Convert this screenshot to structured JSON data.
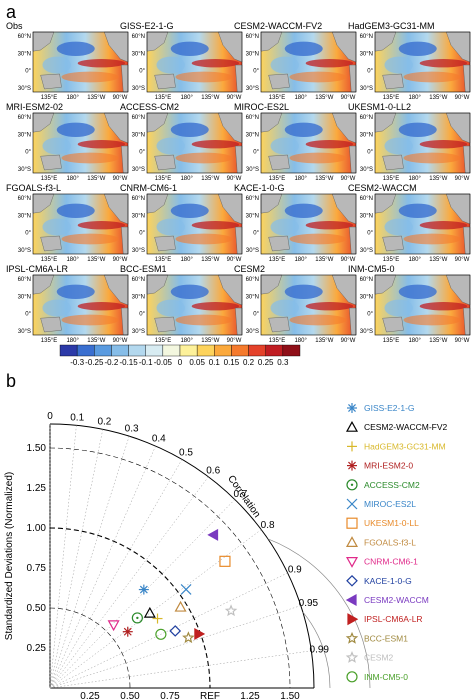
{
  "figure": {
    "panel_a_label": "a",
    "panel_b_label": "b"
  },
  "maps": [
    {
      "title": "Obs"
    },
    {
      "title": "GISS-E2-1-G"
    },
    {
      "title": "CESM2-WACCM-FV2"
    },
    {
      "title": "HadGEM3-GC31-MM"
    },
    {
      "title": "MRI-ESM2-02"
    },
    {
      "title": "ACCESS-CM2"
    },
    {
      "title": "MIROC-ES2L"
    },
    {
      "title": "UKESM1-0-LL2"
    },
    {
      "title": "FGOALS-f3-L"
    },
    {
      "title": "CNRM-CM6-1"
    },
    {
      "title": "KACE-1-0-G"
    },
    {
      "title": "CESM2-WACCM"
    },
    {
      "title": "IPSL-CM6A-LR"
    },
    {
      "title": "BCC-ESM1"
    },
    {
      "title": "CESM2"
    },
    {
      "title": "INM-CM5-0"
    }
  ],
  "map_axes": {
    "lat_ticks": [
      "60°N",
      "30°N",
      "0°",
      "30°S"
    ],
    "lon_ticks": [
      "135°E",
      "180°",
      "135°W",
      "90°W"
    ]
  },
  "colorbar": {
    "ticks": [
      "-0.3",
      "-0.25",
      "-0.2",
      "-0.15",
      "-0.1",
      "-0.05",
      "0",
      "0.05",
      "0.1",
      "0.15",
      "0.2",
      "0.25",
      "0.3"
    ],
    "colors": [
      "#2c3aa8",
      "#3a6fd0",
      "#5a9be0",
      "#86bde8",
      "#b3d8ee",
      "#d8ecf2",
      "#f3f7df",
      "#fdf19a",
      "#fdd35c",
      "#fba93c",
      "#f57a2c",
      "#e4422a",
      "#c01d22",
      "#8f0f18"
    ]
  },
  "chart_data": {
    "type": "scatter",
    "subtype": "taylor-diagram",
    "ylabel": "Standardized Deviations (Normalized)",
    "correlation_label": "Correlation",
    "ref_label": "REF",
    "std_ticks": [
      "0.25",
      "0.50",
      "0.75",
      "1.00",
      "1.25",
      "1.50"
    ],
    "x_tick_labels": [
      "0.25",
      "0.50",
      "0.75",
      "REF",
      "1.25",
      "1.50"
    ],
    "corr_ticks": [
      "0",
      "0.1",
      "0.2",
      "0.3",
      "0.4",
      "0.5",
      "0.6",
      "0.7",
      "0.8",
      "0.9",
      "0.95",
      "0.99"
    ],
    "corr_tick_values": [
      0,
      0.1,
      0.2,
      0.3,
      0.4,
      0.5,
      0.6,
      0.7,
      0.8,
      0.9,
      0.95,
      0.99
    ],
    "std_max": 1.65,
    "models": [
      {
        "name": "GISS-E2-1-G",
        "marker": "asterisk",
        "color": "#3a86c8",
        "std": 0.85,
        "corr": 0.69
      },
      {
        "name": "CESM2-WACCM-FV2",
        "marker": "triangle-up",
        "color": "#000000",
        "std": 0.78,
        "corr": 0.8
      },
      {
        "name": "HadGEM3-GC31-MM",
        "marker": "plus",
        "color": "#d8b82a",
        "std": 0.8,
        "corr": 0.84
      },
      {
        "name": "MRI-ESM2-0",
        "marker": "asterisk",
        "color": "#b02020",
        "std": 0.6,
        "corr": 0.81
      },
      {
        "name": "ACCESS-CM2",
        "marker": "circle-dot",
        "color": "#2a8a2a",
        "std": 0.7,
        "corr": 0.78
      },
      {
        "name": "MIROC-ES2L",
        "marker": "x",
        "color": "#3a86c8",
        "std": 1.05,
        "corr": 0.81
      },
      {
        "name": "UKESM1-0-LL",
        "marker": "square",
        "color": "#e88a2a",
        "std": 1.35,
        "corr": 0.81
      },
      {
        "name": "FGOALS-f3-L",
        "marker": "triangle-up",
        "color": "#c08a40",
        "std": 0.96,
        "corr": 0.85
      },
      {
        "name": "CNRM-CM6-1",
        "marker": "triangle-down",
        "color": "#e02a8a",
        "std": 0.56,
        "corr": 0.71
      },
      {
        "name": "KACE-1-0-G",
        "marker": "diamond",
        "color": "#2040a0",
        "std": 0.86,
        "corr": 0.91
      },
      {
        "name": "CESM2-WACCM",
        "marker": "triangle-left",
        "color": "#7a3ac0",
        "std": 1.4,
        "corr": 0.73
      },
      {
        "name": "IPSL-CM6A-LR",
        "marker": "triangle-right",
        "color": "#c02020",
        "std": 0.99,
        "corr": 0.94
      },
      {
        "name": "BCC-ESM1",
        "marker": "star",
        "color": "#a08a40",
        "std": 0.92,
        "corr": 0.94
      },
      {
        "name": "CESM2",
        "marker": "star",
        "color": "#c0c0c0",
        "std": 1.23,
        "corr": 0.92
      },
      {
        "name": "INM-CM5-0",
        "marker": "circle",
        "color": "#4aa02a",
        "std": 0.77,
        "corr": 0.9
      }
    ]
  }
}
